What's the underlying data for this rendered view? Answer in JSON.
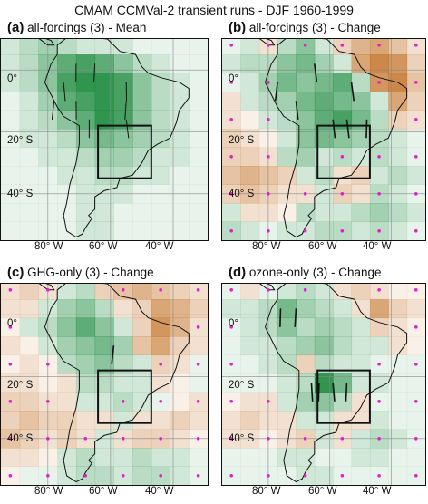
{
  "figure": {
    "title": "CMAM CCMVal-2 transient runs - DJF 1960-1999"
  },
  "panels": [
    {
      "letter": "(a)",
      "text": "all-forcings (3) - Mean",
      "kind": "mean"
    },
    {
      "letter": "(b)",
      "text": "all-forcings (3) - Change",
      "kind": "change"
    },
    {
      "letter": "(c)",
      "text": "GHG-only (3) - Change",
      "kind": "change"
    },
    {
      "letter": "(d)",
      "text": "ozone-only (3) - Change",
      "kind": "change"
    }
  ],
  "axes": {
    "lat_labels": [
      "0°",
      "20° S",
      "40° S"
    ],
    "lon_labels": [
      "80° W",
      "60° W",
      "40° W"
    ]
  },
  "colors": {
    "green": "#1a8a3c",
    "brown": "#c06a1a",
    "dot": "#e020c8",
    "coast": "#111111",
    "frame": "#111111"
  },
  "chart_data": {
    "type": "heatmap",
    "grid": {
      "lon": [
        -92,
        -86,
        -80,
        -74,
        -68,
        -62,
        -56,
        -50,
        -44,
        -38,
        -32
      ],
      "lat": [
        8,
        2,
        -4,
        -10,
        -16,
        -22,
        -28,
        -34,
        -40,
        -46,
        -52
      ]
    },
    "lon_range": [
      -95,
      -29
    ],
    "lat_range": [
      10,
      -55
    ],
    "box": {
      "lon": [
        -64,
        -47
      ],
      "lat": [
        -18,
        -35
      ]
    },
    "fields": {
      "a": [
        [
          0.2,
          0.3,
          0.4,
          0.3,
          0.2,
          0.2,
          0.2,
          0.1,
          0.1,
          0.1,
          0.1
        ],
        [
          0.2,
          0.3,
          0.5,
          0.7,
          0.8,
          0.7,
          0.5,
          0.3,
          0.2,
          0.1,
          0.1
        ],
        [
          0.2,
          0.3,
          0.5,
          0.8,
          0.9,
          0.9,
          0.8,
          0.5,
          0.3,
          0.2,
          0.1
        ],
        [
          0.1,
          0.2,
          0.4,
          0.7,
          0.8,
          0.9,
          0.8,
          0.5,
          0.3,
          0.2,
          0.1
        ],
        [
          0.1,
          0.2,
          0.3,
          0.5,
          0.7,
          0.95,
          0.8,
          0.5,
          0.3,
          0.2,
          0.1
        ],
        [
          0.1,
          0.2,
          0.2,
          0.3,
          0.5,
          0.6,
          0.5,
          0.4,
          0.3,
          0.2,
          0.1
        ],
        [
          0.1,
          0.1,
          0.2,
          0.2,
          0.3,
          0.4,
          0.4,
          0.3,
          0.2,
          0.2,
          0.1
        ],
        [
          0.1,
          0.1,
          0.1,
          0.2,
          0.2,
          0.3,
          0.3,
          0.2,
          0.2,
          0.1,
          0.1
        ],
        [
          0.1,
          0.1,
          0.1,
          0.1,
          0.2,
          0.2,
          0.2,
          0.1,
          0.1,
          0.1,
          0.1
        ],
        [
          0.1,
          0.1,
          0.1,
          0.1,
          0.2,
          0.2,
          0.1,
          0.1,
          0.1,
          0.1,
          0.1
        ],
        [
          0.1,
          0.1,
          0.1,
          0.1,
          0.2,
          0.2,
          0.1,
          0.1,
          0.1,
          0.1,
          0.1
        ]
      ],
      "b": [
        [
          0.1,
          0.2,
          -0.2,
          0.3,
          0.5,
          0.2,
          -0.3,
          -0.5,
          -0.6,
          -0.4,
          -0.2
        ],
        [
          0.2,
          0.3,
          0.3,
          0.5,
          0.6,
          0.4,
          0.2,
          -0.6,
          -0.8,
          -0.7,
          -0.3
        ],
        [
          0.1,
          0.2,
          0.4,
          0.6,
          0.5,
          0.6,
          0.7,
          0.3,
          -0.7,
          -0.8,
          -0.4
        ],
        [
          -0.2,
          0.2,
          0.3,
          0.4,
          0.6,
          0.7,
          0.6,
          0.5,
          0.2,
          -0.6,
          -0.3
        ],
        [
          -0.2,
          -0.1,
          0.2,
          0.3,
          0.5,
          0.7,
          0.8,
          0.6,
          0.3,
          -0.3,
          -0.2
        ],
        [
          -0.3,
          -0.2,
          -0.1,
          0.2,
          0.5,
          0.6,
          0.5,
          0.4,
          0.3,
          0.2,
          0.1
        ],
        [
          -0.3,
          -0.3,
          -0.2,
          0.3,
          0.4,
          0.2,
          0.3,
          0.2,
          0.3,
          0.2,
          0.1
        ],
        [
          -0.4,
          -0.5,
          -0.4,
          -0.3,
          0.2,
          0.3,
          -0.2,
          -0.3,
          0.2,
          0.3,
          0.2
        ],
        [
          -0.3,
          -0.4,
          -0.3,
          -0.2,
          -0.2,
          0.2,
          -0.3,
          -0.2,
          0.3,
          0.2,
          0.1
        ],
        [
          0.2,
          -0.2,
          -0.2,
          -0.1,
          0.3,
          0.2,
          0.2,
          0.3,
          0.4,
          0.3,
          0.2
        ],
        [
          0.3,
          0.2,
          0.1,
          0.2,
          0.2,
          0.3,
          0.3,
          0.2,
          0.3,
          0.2,
          0.1
        ]
      ],
      "c": [
        [
          -0.2,
          -0.3,
          -0.2,
          0.2,
          0.3,
          -0.3,
          -0.4,
          -0.5,
          -0.4,
          -0.3,
          -0.2
        ],
        [
          -0.2,
          -0.2,
          0.2,
          0.4,
          0.5,
          0.3,
          -0.2,
          -0.3,
          -0.6,
          -0.5,
          -0.3
        ],
        [
          -0.1,
          0.2,
          0.3,
          0.5,
          0.7,
          0.5,
          0.2,
          -0.3,
          -0.7,
          -0.5,
          -0.2
        ],
        [
          -0.2,
          -0.1,
          0.2,
          0.4,
          0.5,
          0.6,
          0.4,
          -0.4,
          -0.6,
          -0.3,
          -0.2
        ],
        [
          -0.1,
          -0.2,
          -0.1,
          0.3,
          0.4,
          0.5,
          0.3,
          0.2,
          -0.3,
          -0.2,
          0.1
        ],
        [
          -0.2,
          -0.2,
          -0.1,
          -0.2,
          0.3,
          0.3,
          0.2,
          0.2,
          -0.2,
          -0.1,
          0.1
        ],
        [
          -0.3,
          -0.3,
          -0.2,
          -0.2,
          0.2,
          0.2,
          0.3,
          0.2,
          0.1,
          -0.1,
          -0.2
        ],
        [
          -0.3,
          -0.4,
          -0.3,
          -0.3,
          -0.2,
          -0.2,
          0.2,
          -0.2,
          -0.2,
          -0.3,
          -0.2
        ],
        [
          -0.4,
          -0.3,
          -0.2,
          -0.3,
          -0.2,
          0.2,
          -0.2,
          -0.3,
          -0.3,
          -0.2,
          -0.1
        ],
        [
          -0.2,
          -0.2,
          -0.1,
          0.2,
          0.3,
          0.2,
          0.2,
          0.3,
          0.2,
          0.2,
          0.1
        ],
        [
          -0.1,
          0.1,
          0.1,
          0.2,
          0.3,
          0.3,
          0.2,
          0.3,
          0.3,
          0.2,
          0.1
        ]
      ],
      "d": [
        [
          0.1,
          -0.2,
          0.1,
          0.2,
          0.3,
          0.2,
          -0.2,
          -0.3,
          -0.2,
          -0.1,
          -0.1
        ],
        [
          0.2,
          0.2,
          0.3,
          0.6,
          0.4,
          0.3,
          0.2,
          -0.2,
          -0.6,
          -0.3,
          -0.2
        ],
        [
          0.1,
          0.2,
          0.3,
          0.5,
          0.3,
          0.4,
          0.3,
          0.2,
          -0.3,
          -0.2,
          -0.1
        ],
        [
          0.1,
          0.2,
          0.2,
          0.3,
          0.4,
          0.5,
          0.3,
          0.2,
          0.2,
          -0.2,
          -0.1
        ],
        [
          0.1,
          0.1,
          0.2,
          0.3,
          -0.3,
          0.3,
          0.2,
          0.2,
          0.1,
          0.1,
          0.1
        ],
        [
          0.1,
          0.1,
          0.1,
          0.2,
          0.3,
          0.9,
          0.6,
          0.2,
          0.2,
          0.1,
          0.1
        ],
        [
          -0.1,
          -0.2,
          -0.2,
          0.2,
          0.4,
          0.5,
          0.3,
          -0.2,
          0.1,
          0.1,
          0.1
        ],
        [
          -0.2,
          -0.3,
          -0.2,
          -0.2,
          0.2,
          0.2,
          -0.2,
          -0.2,
          0.2,
          0.1,
          0.1
        ],
        [
          -0.2,
          -0.2,
          -0.1,
          -0.2,
          -0.3,
          0.2,
          -0.2,
          0.2,
          0.3,
          0.2,
          0.1
        ],
        [
          0.1,
          0.1,
          0.1,
          0.2,
          0.2,
          0.1,
          0.1,
          0.2,
          0.2,
          0.1,
          0.1
        ],
        [
          0.1,
          0.1,
          0.1,
          0.1,
          0.2,
          0.2,
          0.1,
          0.1,
          0.1,
          0.1,
          0.1
        ]
      ]
    },
    "dots": {
      "b": [
        [
          0,
          0
        ],
        [
          0,
          2
        ],
        [
          0,
          4
        ],
        [
          0,
          6
        ],
        [
          0,
          8
        ],
        [
          0,
          10
        ],
        [
          2,
          0
        ],
        [
          2,
          2
        ],
        [
          2,
          8
        ],
        [
          2,
          10
        ],
        [
          4,
          0
        ],
        [
          4,
          2
        ],
        [
          4,
          10
        ],
        [
          6,
          0
        ],
        [
          6,
          2
        ],
        [
          6,
          6
        ],
        [
          6,
          8
        ],
        [
          6,
          10
        ],
        [
          8,
          0
        ],
        [
          8,
          2
        ],
        [
          8,
          4
        ],
        [
          8,
          6
        ],
        [
          8,
          8
        ],
        [
          8,
          10
        ],
        [
          10,
          0
        ],
        [
          10,
          2
        ],
        [
          10,
          4
        ],
        [
          10,
          6
        ],
        [
          10,
          8
        ],
        [
          10,
          10
        ]
      ],
      "c": [
        [
          0,
          0
        ],
        [
          0,
          2
        ],
        [
          0,
          6
        ],
        [
          0,
          8
        ],
        [
          0,
          10
        ],
        [
          2,
          0
        ],
        [
          2,
          10
        ],
        [
          4,
          0
        ],
        [
          4,
          2
        ],
        [
          4,
          8
        ],
        [
          4,
          10
        ],
        [
          6,
          0
        ],
        [
          6,
          2
        ],
        [
          6,
          6
        ],
        [
          6,
          8
        ],
        [
          6,
          10
        ],
        [
          8,
          0
        ],
        [
          8,
          2
        ],
        [
          8,
          4
        ],
        [
          8,
          6
        ],
        [
          8,
          8
        ],
        [
          8,
          10
        ],
        [
          10,
          0
        ],
        [
          10,
          2
        ],
        [
          10,
          4
        ],
        [
          10,
          6
        ],
        [
          10,
          8
        ],
        [
          10,
          10
        ]
      ],
      "d": [
        [
          0,
          0
        ],
        [
          0,
          2
        ],
        [
          0,
          4
        ],
        [
          0,
          8
        ],
        [
          0,
          10
        ],
        [
          2,
          0
        ],
        [
          2,
          10
        ],
        [
          4,
          0
        ],
        [
          4,
          8
        ],
        [
          4,
          10
        ],
        [
          6,
          0
        ],
        [
          6,
          2
        ],
        [
          6,
          8
        ],
        [
          6,
          10
        ],
        [
          8,
          0
        ],
        [
          8,
          2
        ],
        [
          8,
          4
        ],
        [
          8,
          6
        ],
        [
          8,
          8
        ],
        [
          8,
          10
        ],
        [
          10,
          0
        ],
        [
          10,
          2
        ],
        [
          10,
          4
        ],
        [
          10,
          6
        ],
        [
          10,
          8
        ],
        [
          10,
          10
        ]
      ]
    }
  }
}
